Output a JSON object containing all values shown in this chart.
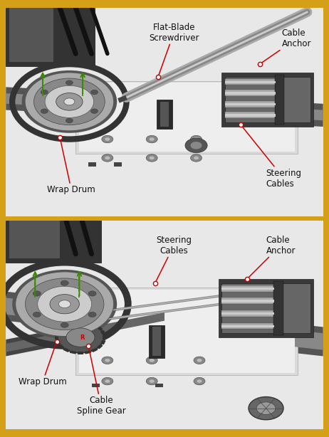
{
  "border_color": "#D4A017",
  "border_width": 4,
  "panel1": {
    "bg_color": "#F0F0F0",
    "labels": [
      {
        "text": "Flat-Blade\nScrewdriver",
        "xtxt": 0.53,
        "ytxt": 0.93,
        "xarr": 0.48,
        "yarr": 0.67,
        "ha": "center",
        "va": "top"
      },
      {
        "text": "Cable\nAnchor",
        "xtxt": 0.87,
        "ytxt": 0.9,
        "xarr": 0.8,
        "yarr": 0.73,
        "ha": "left",
        "va": "top"
      },
      {
        "text": "Wrap Drum",
        "xtxt": 0.13,
        "ytxt": 0.15,
        "xarr": 0.17,
        "yarr": 0.38,
        "ha": "left",
        "va": "top"
      },
      {
        "text": "Steering\nCables",
        "xtxt": 0.82,
        "ytxt": 0.23,
        "xarr": 0.74,
        "yarr": 0.44,
        "ha": "left",
        "va": "top"
      }
    ]
  },
  "panel2": {
    "bg_color": "#F0F0F0",
    "labels": [
      {
        "text": "Steering\nCables",
        "xtxt": 0.53,
        "ytxt": 0.93,
        "xarr": 0.47,
        "yarr": 0.7,
        "ha": "center",
        "va": "top"
      },
      {
        "text": "Cable\nAnchor",
        "xtxt": 0.82,
        "ytxt": 0.93,
        "xarr": 0.76,
        "yarr": 0.72,
        "ha": "left",
        "va": "top"
      },
      {
        "text": "Wrap Drum",
        "xtxt": 0.04,
        "ytxt": 0.25,
        "xarr": 0.16,
        "yarr": 0.42,
        "ha": "left",
        "va": "top"
      },
      {
        "text": "Cable\nSpline Gear",
        "xtxt": 0.3,
        "ytxt": 0.16,
        "xarr": 0.26,
        "yarr": 0.4,
        "ha": "center",
        "va": "top"
      }
    ]
  },
  "arrow_color": "#CC0000",
  "text_color": "#111111",
  "green_color": "#3A8A00",
  "font_size": 8.5
}
